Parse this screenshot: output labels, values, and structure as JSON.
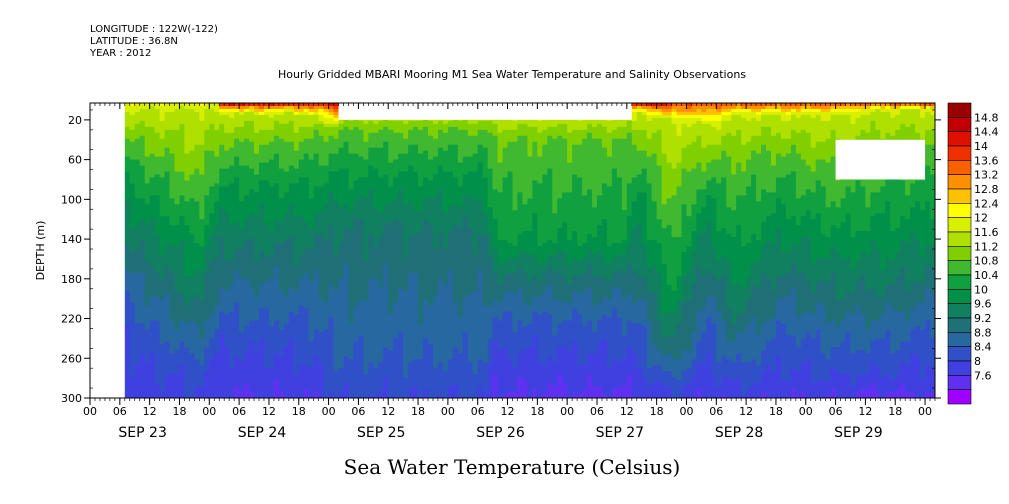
{
  "header": {
    "longitude": "LONGITUDE : 122W(-122)",
    "latitude": "LATITUDE : 36.8N",
    "year": "YEAR : 2012"
  },
  "chart_data": {
    "type": "heatmap",
    "title": "Hourly Gridded MBARI Mooring M1 Sea Water Temperature and Salinity Observations",
    "xlabel": "",
    "ylabel": "DEPTH (m)",
    "colorbar_label": "Sea Water Temperature (Celsius)",
    "x_range_hours": [
      0,
      170
    ],
    "ylim": [
      300,
      3
    ],
    "y_ticks": [
      20,
      60,
      100,
      140,
      180,
      220,
      260,
      300
    ],
    "x_hour_ticks": [
      "00",
      "06",
      "12",
      "18",
      "00",
      "06",
      "12",
      "18",
      "00",
      "06",
      "12",
      "18",
      "00",
      "06",
      "12",
      "18",
      "00",
      "06",
      "12",
      "18",
      "00",
      "06",
      "12",
      "18",
      "00",
      "06",
      "12",
      "18",
      "00"
    ],
    "x_day_labels": [
      "SEP 23",
      "SEP 24",
      "SEP 25",
      "SEP 26",
      "SEP 27",
      "SEP 28",
      "SEP 29"
    ],
    "colorbar_levels": [
      "14.8",
      "14.4",
      "14",
      "13.6",
      "13.2",
      "12.8",
      "12.4",
      "12",
      "11.6",
      "11.2",
      "10.8",
      "10.4",
      "10",
      "9.6",
      "9.2",
      "8.8",
      "8.4",
      "8",
      "7.6"
    ],
    "colors": [
      "#9a0000",
      "#c00000",
      "#e01000",
      "#f03000",
      "#f86000",
      "#ff9000",
      "#ffc000",
      "#ffff00",
      "#d8f000",
      "#b0e000",
      "#80d000",
      "#40b830",
      "#10a040",
      "#00904a",
      "#108060",
      "#207078",
      "#2868a0",
      "#3050c8",
      "#4040e0",
      "#6030f0",
      "#a000ff"
    ],
    "missing_regions": [
      {
        "x_hours": [
          -1,
          7
        ],
        "depth": [
          3,
          300
        ]
      },
      {
        "x_hours": [
          50,
          109
        ],
        "depth": [
          3,
          20
        ]
      },
      {
        "x_hours": [
          150,
          168
        ],
        "depth": [
          40,
          80
        ]
      }
    ],
    "profile_columns": [
      {
        "x": 7,
        "depth_of_temp": {
          "12": 10,
          "11.2": 40,
          "10.4": 80,
          "9.6": 140,
          "8.8": 200,
          "8.4": 240
        },
        "bottom": 8.2
      },
      {
        "x": 22,
        "depth_of_temp": {
          "12": 8,
          "11.2": 85,
          "10.4": 140,
          "9.6": 210,
          "8.8": 260,
          "8.4": 285
        },
        "bottom": 8.3
      },
      {
        "x": 26,
        "depth_of_temp": {
          "12": 12,
          "11.2": 45,
          "10.4": 90,
          "9.6": 150,
          "8.8": 220,
          "8.4": 250
        },
        "bottom": 8.0
      },
      {
        "x": 44,
        "depth_of_temp": {
          "12": 10,
          "11.2": 40,
          "10.4": 85,
          "9.6": 150,
          "8.8": 220,
          "8.4": 260
        },
        "bottom": 8.0
      },
      {
        "x": 50,
        "depth_of_temp": {
          "11.2": 30,
          "10.4": 75,
          "9.6": 130,
          "8.8": 260
        },
        "bottom": 8.4
      },
      {
        "x": 80,
        "depth_of_temp": {
          "11.2": 30,
          "10.4": 75,
          "9.6": 130,
          "8.8": 260
        },
        "bottom": 8.4
      },
      {
        "x": 81,
        "depth_of_temp": {
          "11.2": 40,
          "10.4": 140,
          "9.6": 175,
          "8.8": 220,
          "8.4": 255
        },
        "bottom": 7.9
      },
      {
        "x": 108,
        "depth_of_temp": {
          "11.2": 40,
          "10.4": 140,
          "9.6": 175,
          "8.8": 220,
          "8.4": 255
        },
        "bottom": 7.9
      },
      {
        "x": 110,
        "depth_of_temp": {
          "12": 10,
          "11.2": 40,
          "10.4": 90,
          "9.6": 160,
          "8.8": 220,
          "8.4": 265
        },
        "bottom": 8.0
      },
      {
        "x": 117,
        "depth_of_temp": {
          "12": 20,
          "11.2": 110,
          "10.4": 190,
          "9.6": 250,
          "8.8": 280,
          "8.4": 292
        },
        "bottom": 8.3
      },
      {
        "x": 124,
        "depth_of_temp": {
          "12": 25,
          "11.2": 60,
          "10.4": 100,
          "9.6": 160,
          "8.8": 220,
          "8.4": 265
        },
        "bottom": 8.0
      },
      {
        "x": 130,
        "depth_of_temp": {
          "12": 15,
          "11.2": 60,
          "10.4": 150,
          "9.6": 220,
          "8.8": 268,
          "8.4": 288
        },
        "bottom": 8.2
      },
      {
        "x": 139,
        "depth_of_temp": {
          "12": 15,
          "11.2": 50,
          "10.4": 110,
          "9.6": 170,
          "8.8": 230,
          "8.4": 270
        },
        "bottom": 8.0
      },
      {
        "x": 150,
        "depth_of_temp": {
          "12": 15,
          "11.2": 70,
          "10.4": 130,
          "9.6": 190,
          "8.8": 250,
          "8.4": 280
        },
        "bottom": 8.0
      },
      {
        "x": 160,
        "depth_of_temp": {
          "12": 10,
          "11.2": 50,
          "10.4": 120,
          "9.6": 190,
          "8.8": 245,
          "8.4": 275
        },
        "bottom": 7.8
      },
      {
        "x": 170,
        "depth_of_temp": {
          "12": 10,
          "11.2": 50,
          "10.4": 110,
          "9.6": 170,
          "8.8": 230,
          "8.4": 260
        },
        "bottom": 8.0
      }
    ],
    "surface_warm": [
      {
        "x_hours": [
          26,
          50
        ],
        "max_temp": 14.8
      },
      {
        "x_hours": [
          109,
          117
        ],
        "max_temp": 14.8
      },
      {
        "x_hours": [
          117,
          170
        ],
        "max_temp": 14.0
      }
    ]
  }
}
